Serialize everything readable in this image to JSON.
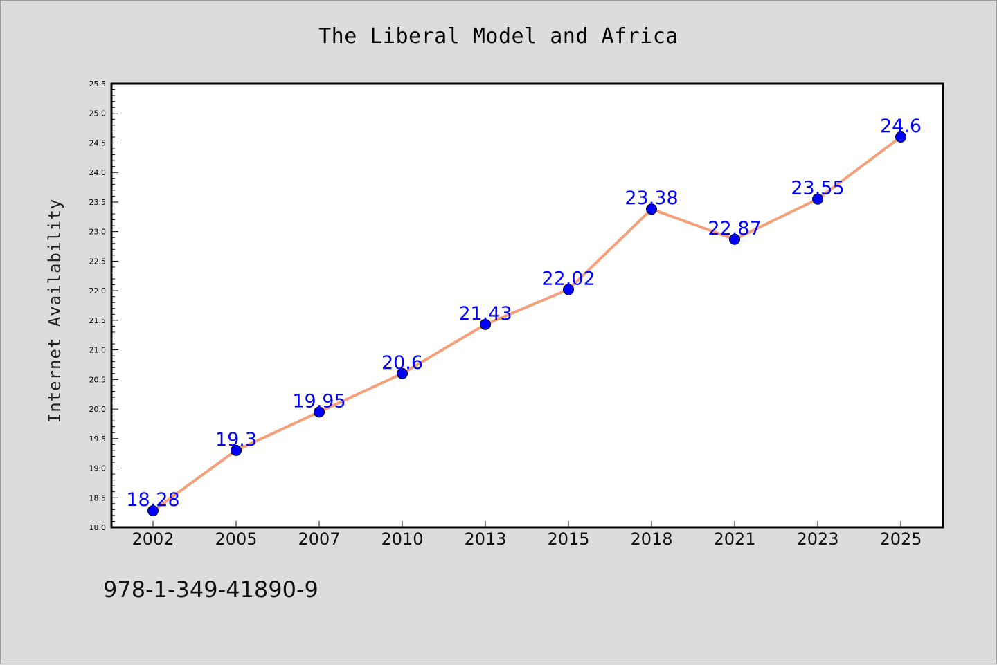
{
  "chart_data": {
    "type": "line",
    "title": "The Liberal Model and Africa",
    "xlabel": "",
    "ylabel": "Internet Availability",
    "categories": [
      "2002",
      "2005",
      "2007",
      "2010",
      "2013",
      "2015",
      "2018",
      "2021",
      "2023",
      "2025"
    ],
    "series": [
      {
        "values": [
          18.28,
          19.3,
          19.95,
          20.6,
          21.43,
          22.02,
          23.38,
          22.87,
          23.55,
          24.6
        ],
        "data_labels": [
          "18.28",
          "19.3",
          "19.95",
          "20.6",
          "21.43",
          "22.02",
          "23.38",
          "22.87",
          "23.55",
          "24.6"
        ],
        "line_color": "#f4a07c",
        "marker_color": "#0000ff"
      }
    ],
    "ylim": [
      18.0,
      25.5
    ],
    "yticks": [
      "18.0",
      "18.5",
      "19.0",
      "19.5",
      "20.0",
      "20.5",
      "21.0",
      "21.5",
      "22.0",
      "22.5",
      "23.0",
      "23.5",
      "24.0",
      "24.5",
      "25.0",
      "25.5"
    ],
    "grid": false,
    "legend": "none"
  },
  "footer": {
    "code": "978-1-349-41890-9"
  },
  "colors": {
    "background": "#dcdcdc",
    "plot_background": "#ffffff",
    "line": "#f4a07c",
    "marker": "#0000ff",
    "data_label": "#0000ff"
  }
}
